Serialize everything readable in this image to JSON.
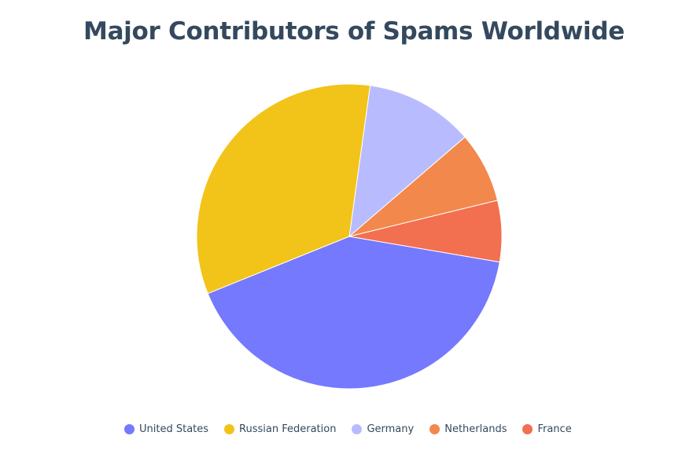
{
  "chart_data": {
    "type": "pie",
    "title": "Major Contributors of Spams Worldwide",
    "categories": [
      "United States",
      "Russian Federation",
      "Germany",
      "Netherlands",
      "France"
    ],
    "values": [
      41.2,
      33.3,
      11.5,
      7.5,
      6.5
    ],
    "colors": [
      "#7479fe",
      "#f2c318",
      "#b8bcfe",
      "#f2884c",
      "#f26f50"
    ],
    "legend_position": "bottom"
  }
}
